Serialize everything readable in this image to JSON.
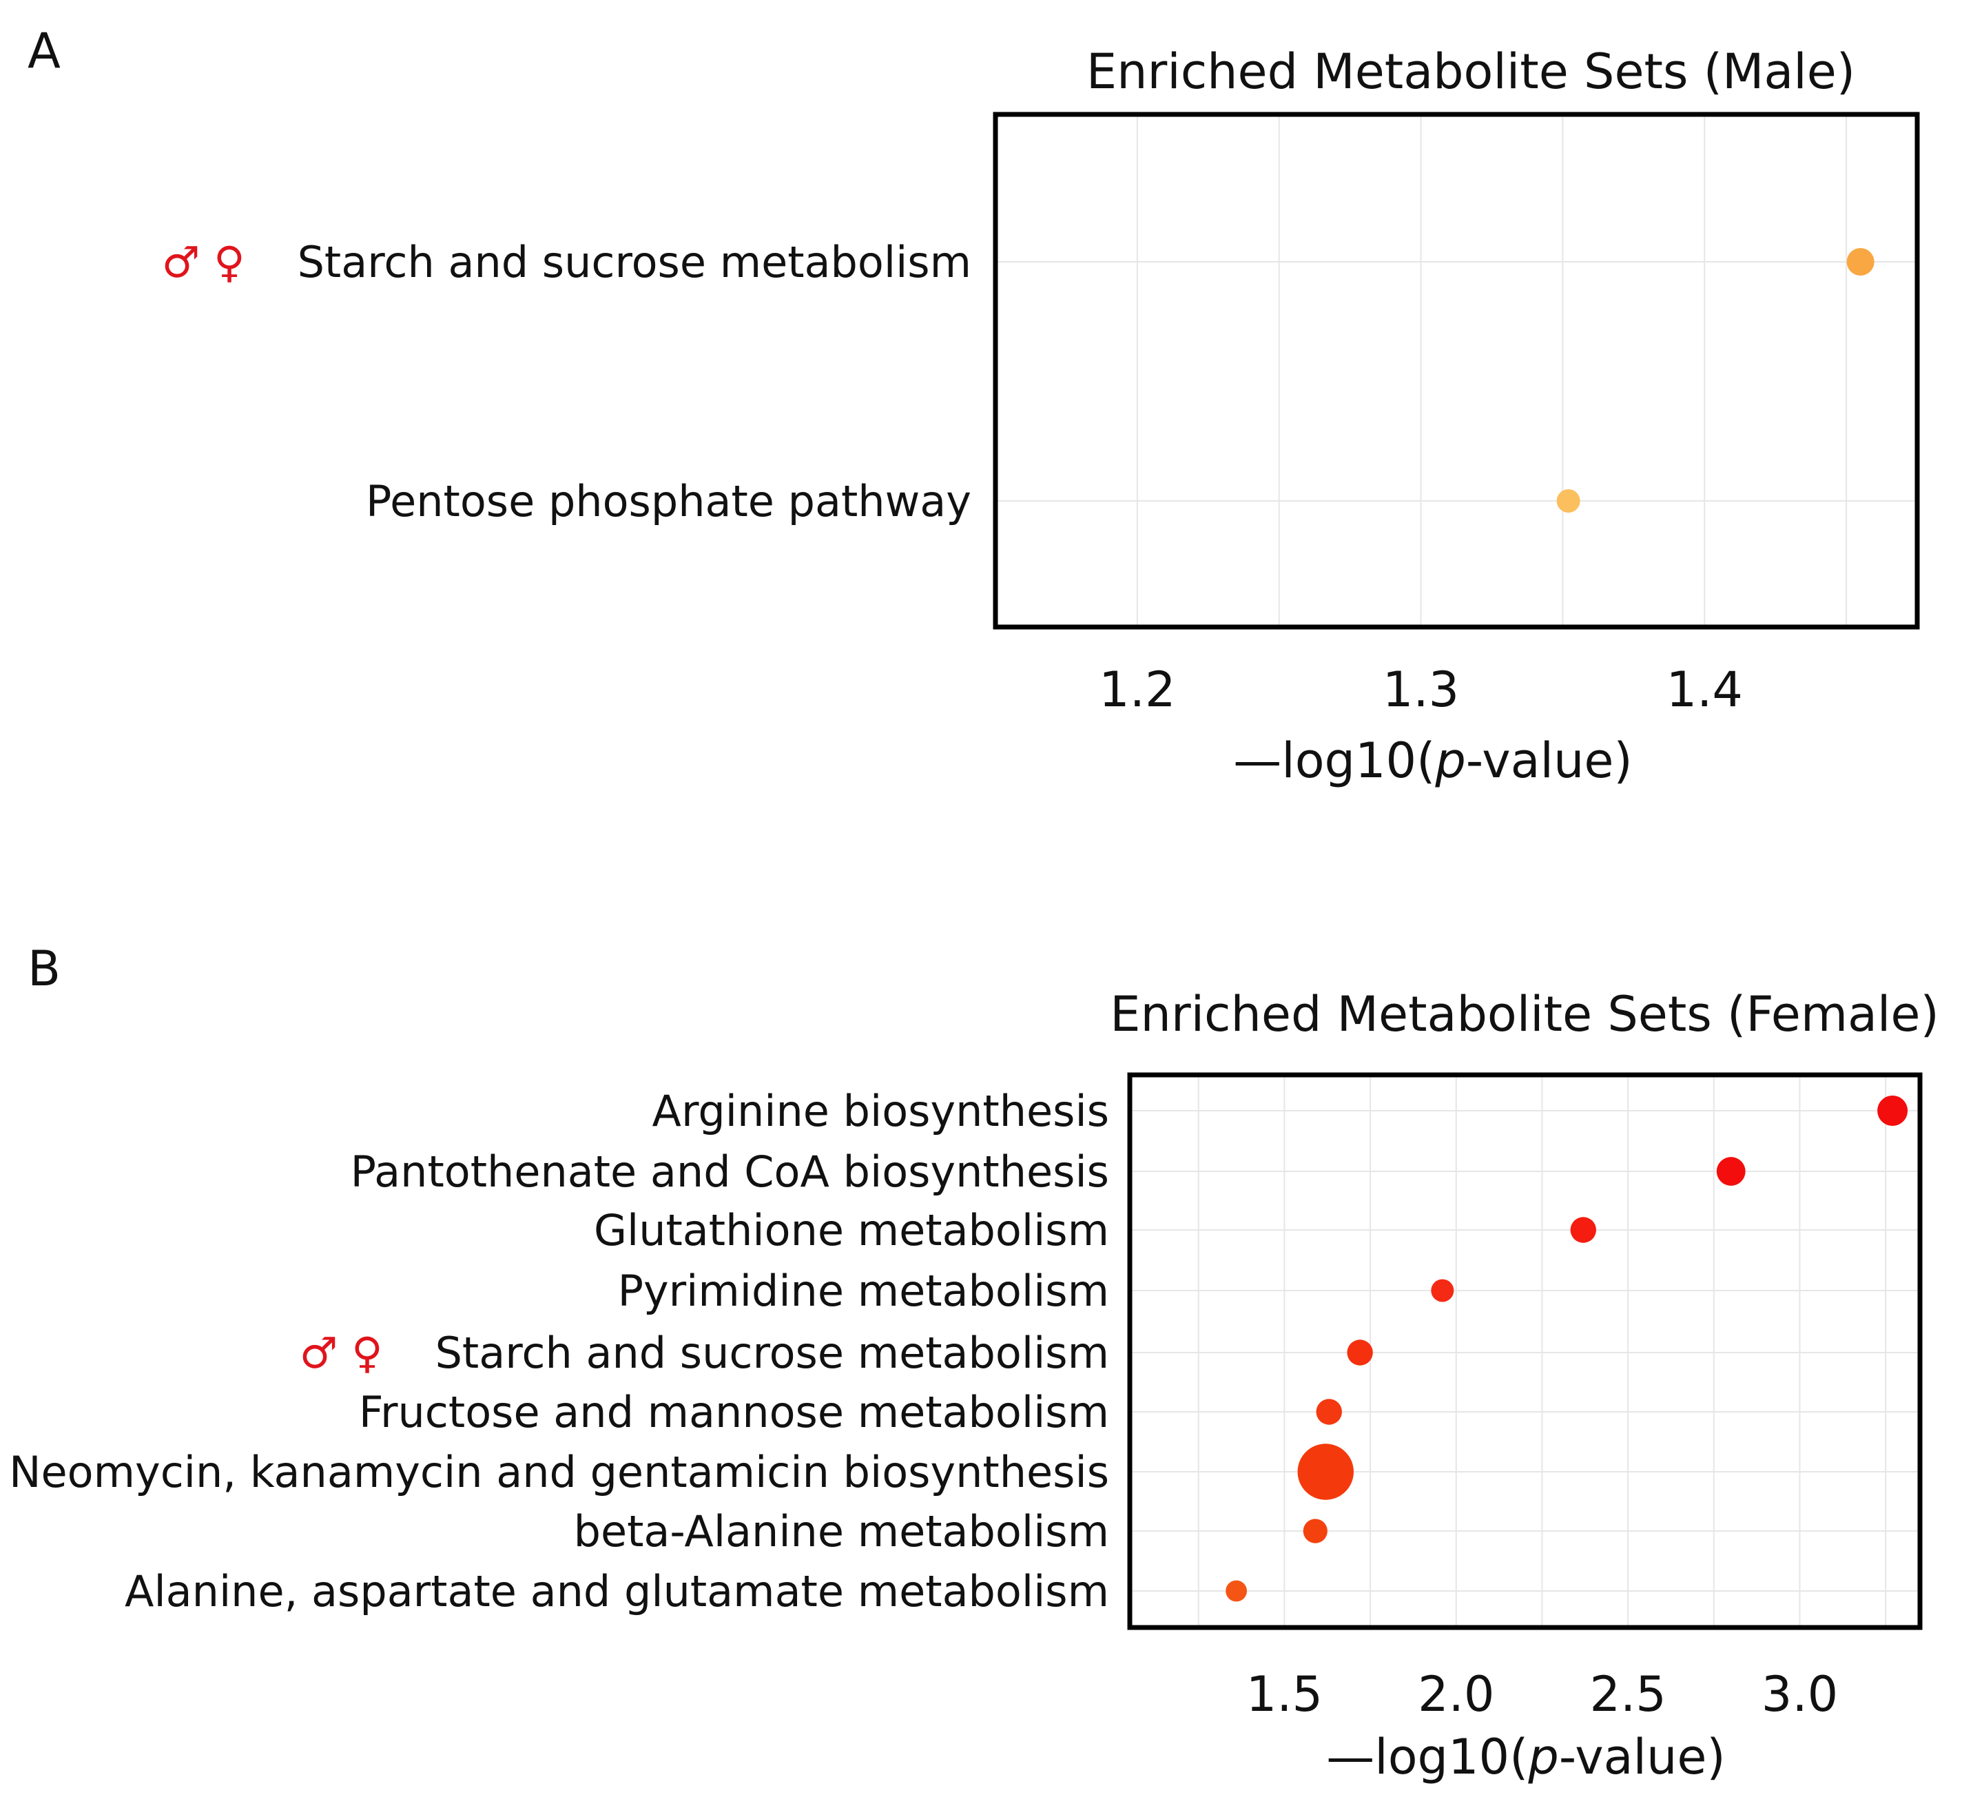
{
  "chart_data": [
    {
      "panel": "A",
      "type": "scatter",
      "title": "Enriched Metabolite Sets (Male)",
      "xlabel": "—log10(p-value)",
      "xlabel_parts": {
        "prefix": "—log10(",
        "italic": "p",
        "suffix": "-value)"
      },
      "xticks": [
        1.2,
        1.3,
        1.4
      ],
      "xtick_labels": [
        "1.2",
        "1.3",
        "1.4"
      ],
      "xlim": [
        1.15,
        1.475
      ],
      "grid": true,
      "categories": [
        "Starch and sucrose metabolism",
        "Pentose phosphate pathway"
      ],
      "values": [
        1.455,
        1.352
      ],
      "point_sizes": [
        1.0,
        0.85
      ],
      "colors": [
        "#f9a743",
        "#fbbf5e"
      ],
      "markers": [
        "♂ ♀",
        ""
      ]
    },
    {
      "panel": "B",
      "type": "scatter",
      "title": "Enriched Metabolite Sets (Female)",
      "xlabel": "—log10(p-value)",
      "xlabel_parts": {
        "prefix": "—log10(",
        "italic": "p",
        "suffix": "-value)"
      },
      "xticks": [
        1.5,
        2.0,
        2.5,
        3.0
      ],
      "xtick_labels": [
        "1.5",
        "2.0",
        "2.5",
        "3.0"
      ],
      "xlim": [
        1.05,
        3.35
      ],
      "grid": true,
      "categories": [
        "Arginine biosynthesis",
        "Pantothenate and CoA biosynthesis",
        "Glutathione metabolism",
        "Pyrimidine metabolism",
        "Starch and sucrose metabolism",
        "Fructose and mannose metabolism",
        "Neomycin, kanamycin and gentamicin biosynthesis",
        "beta-Alanine metabolism",
        "Alanine, aspartate and glutamate metabolism"
      ],
      "values": [
        3.27,
        2.8,
        2.37,
        1.96,
        1.72,
        1.63,
        1.62,
        1.59,
        1.36
      ],
      "point_sizes": [
        1.0,
        0.95,
        0.85,
        0.75,
        0.85,
        0.85,
        1.85,
        0.8,
        0.7
      ],
      "colors": [
        "#f30d0d",
        "#f30d0d",
        "#f41d10",
        "#f42a15",
        "#f4300f",
        "#f4380f",
        "#f43a0c",
        "#f4420f",
        "#f45515"
      ],
      "markers": [
        "",
        "",
        "",
        "",
        "♂ ♀",
        "",
        "",
        "",
        ""
      ]
    }
  ]
}
